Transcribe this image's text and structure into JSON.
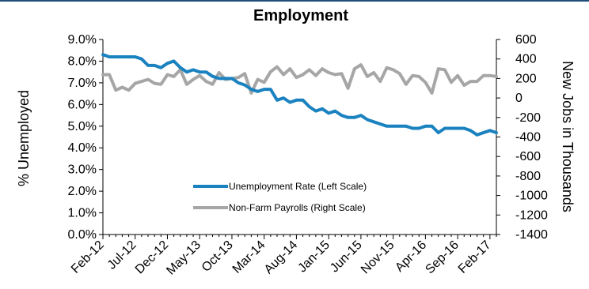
{
  "chart_data": {
    "type": "line",
    "title": "Employment",
    "ylabel_left": "% Unemployed",
    "ylabel_right": "New Jobs in Thousands",
    "x_tick_labels": [
      "Feb-12",
      "Jul-12",
      "Dec-12",
      "May-13",
      "Oct-13",
      "Mar-14",
      "Aug-14",
      "Jan-15",
      "Jun-15",
      "Nov-15",
      "Apr-16",
      "Sep-16",
      "Feb-17"
    ],
    "y_left_ticks": [
      "9.0%",
      "8.0%",
      "7.0%",
      "6.0%",
      "5.0%",
      "4.0%",
      "3.0%",
      "2.0%",
      "1.0%",
      "0.0%"
    ],
    "y_right_ticks": [
      "600",
      "400",
      "200",
      "0",
      "-200",
      "-400",
      "-600",
      "-800",
      "-1000",
      "-1200",
      "-1400"
    ],
    "ylim_left": [
      0,
      9
    ],
    "ylim_right": [
      -1400,
      600
    ],
    "grid": false,
    "legend_position": "center",
    "colors": {
      "unemployment": "#1b82c0",
      "payrolls": "#a6a6a6"
    },
    "series": [
      {
        "name": "Unemployment Rate (Left Scale)",
        "axis": "left",
        "values": [
          8.3,
          8.2,
          8.2,
          8.2,
          8.2,
          8.2,
          8.1,
          7.8,
          7.8,
          7.7,
          7.9,
          8.0,
          7.7,
          7.5,
          7.6,
          7.5,
          7.5,
          7.3,
          7.2,
          7.2,
          7.2,
          7.0,
          6.9,
          6.7,
          6.6,
          6.7,
          6.7,
          6.2,
          6.3,
          6.1,
          6.2,
          6.2,
          5.9,
          5.7,
          5.8,
          5.6,
          5.7,
          5.5,
          5.4,
          5.4,
          5.5,
          5.3,
          5.2,
          5.1,
          5.0,
          5.0,
          5.0,
          5.0,
          4.9,
          4.9,
          5.0,
          5.0,
          4.7,
          4.9,
          4.9,
          4.9,
          4.9,
          4.8,
          4.6,
          4.7,
          4.8,
          4.7
        ]
      },
      {
        "name": "Non-Farm Payrolls (Right Scale)",
        "axis": "right",
        "values": [
          240,
          240,
          80,
          110,
          80,
          150,
          170,
          190,
          150,
          140,
          240,
          220,
          290,
          140,
          190,
          230,
          170,
          140,
          260,
          190,
          200,
          210,
          250,
          50,
          190,
          160,
          270,
          320,
          240,
          300,
          210,
          240,
          290,
          230,
          300,
          260,
          240,
          250,
          100,
          300,
          340,
          220,
          260,
          170,
          310,
          290,
          250,
          140,
          230,
          220,
          160,
          50,
          300,
          290,
          160,
          230,
          130,
          170,
          170,
          230,
          230,
          220
        ]
      }
    ]
  }
}
